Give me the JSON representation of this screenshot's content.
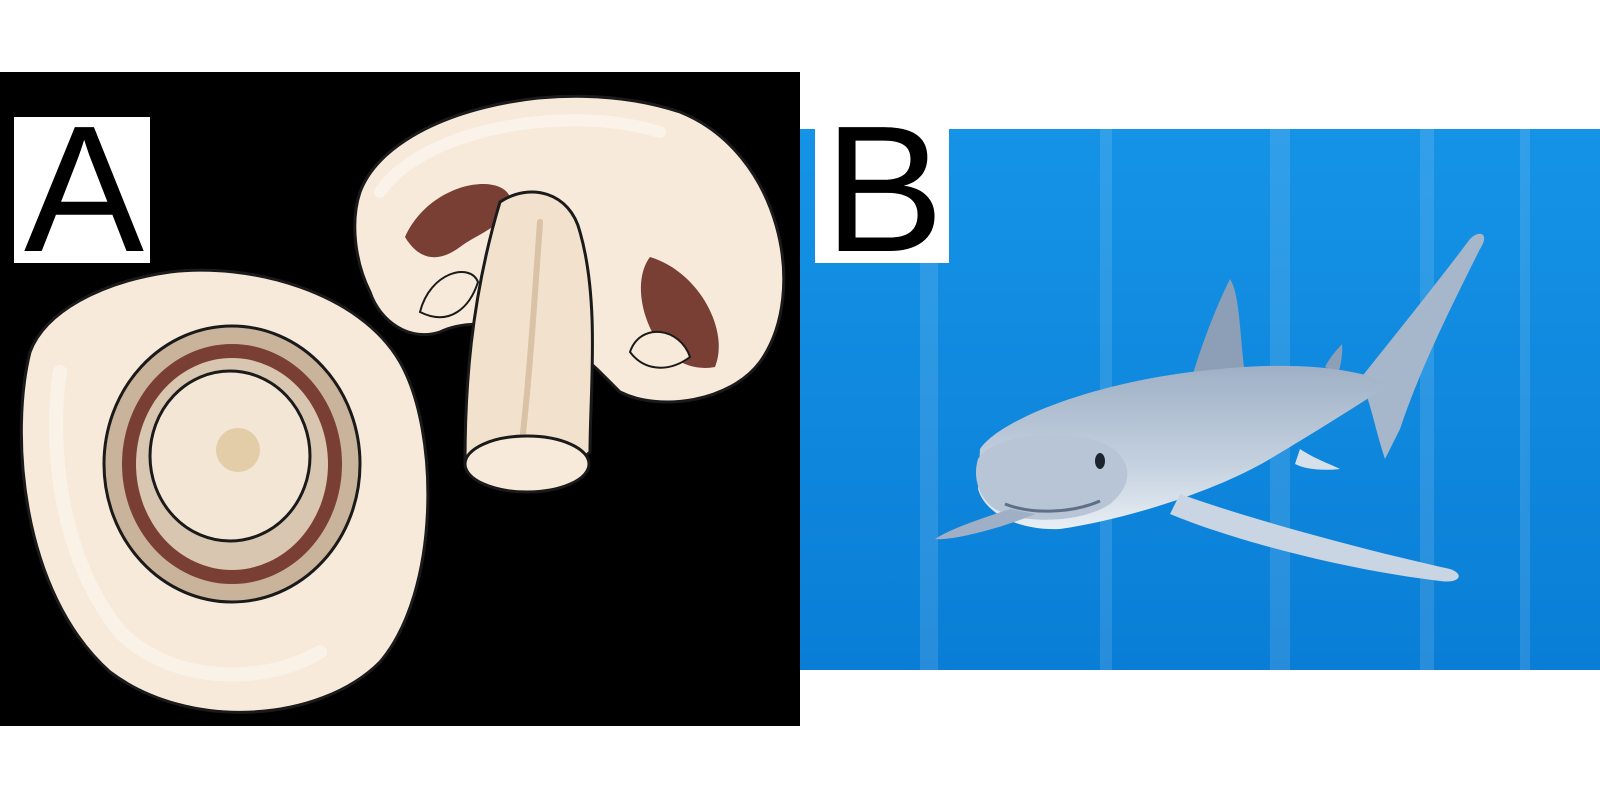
{
  "panels": [
    {
      "label": "A",
      "subject": "mushroom-illustration",
      "colors": {
        "background": "#000000",
        "cap": "#f7eadb",
        "cap_highlight": "#fbf4ea",
        "gills": "#7a3f34",
        "gill_ring": "#c9b39a",
        "outline": "#1a1a1a"
      }
    },
    {
      "label": "B",
      "subject": "shark-photo",
      "colors": {
        "water_top": "#0f8ae0",
        "water_bottom": "#0a7fd8",
        "shark_body": "#b7c5d6",
        "shark_belly": "#e6edf4",
        "shark_shadow": "#7f93ab"
      }
    }
  ]
}
